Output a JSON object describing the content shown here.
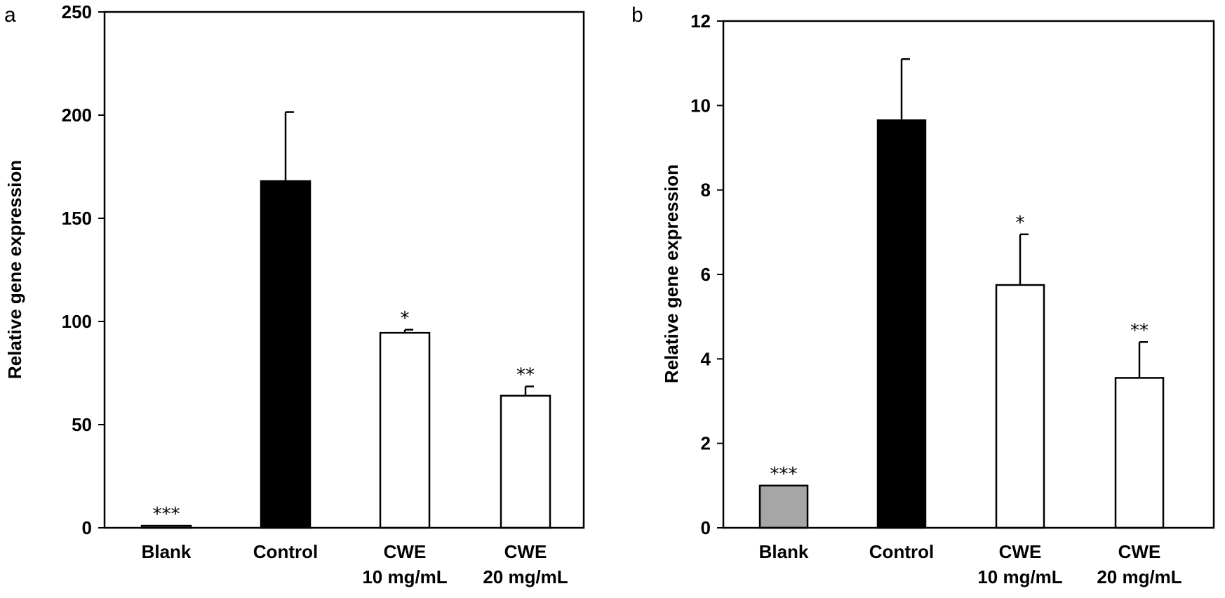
{
  "chart_data": [
    {
      "panel": "a",
      "type": "bar",
      "title": "",
      "xlabel": "",
      "ylabel": "Relative gene expression",
      "ylim": [
        0,
        250
      ],
      "yticks": [
        0,
        50,
        100,
        150,
        200,
        250
      ],
      "categories": [
        [
          "Blank"
        ],
        [
          "Control"
        ],
        [
          "CWE",
          "10 mg/mL"
        ],
        [
          "CWE",
          "20 mg/mL"
        ]
      ],
      "values": [
        1,
        168,
        94.5,
        64
      ],
      "errors": [
        0,
        33.5,
        1.5,
        4.5
      ],
      "colors": [
        "#a6a6a6",
        "#000000",
        "#ffffff",
        "#ffffff"
      ],
      "significance": [
        "***",
        "",
        "*",
        "**"
      ]
    },
    {
      "panel": "b",
      "type": "bar",
      "title": "",
      "xlabel": "",
      "ylabel": "Relative gene expression",
      "ylim": [
        0,
        12
      ],
      "yticks": [
        0,
        2,
        4,
        6,
        8,
        10,
        12
      ],
      "categories": [
        [
          "Blank"
        ],
        [
          "Control"
        ],
        [
          "CWE",
          "10 mg/mL"
        ],
        [
          "CWE",
          "20 mg/mL"
        ]
      ],
      "values": [
        1,
        9.65,
        5.75,
        3.55
      ],
      "errors": [
        0,
        1.45,
        1.2,
        0.85
      ],
      "colors": [
        "#a6a6a6",
        "#000000",
        "#ffffff",
        "#ffffff"
      ],
      "significance": [
        "***",
        "",
        "*",
        "**"
      ]
    }
  ]
}
